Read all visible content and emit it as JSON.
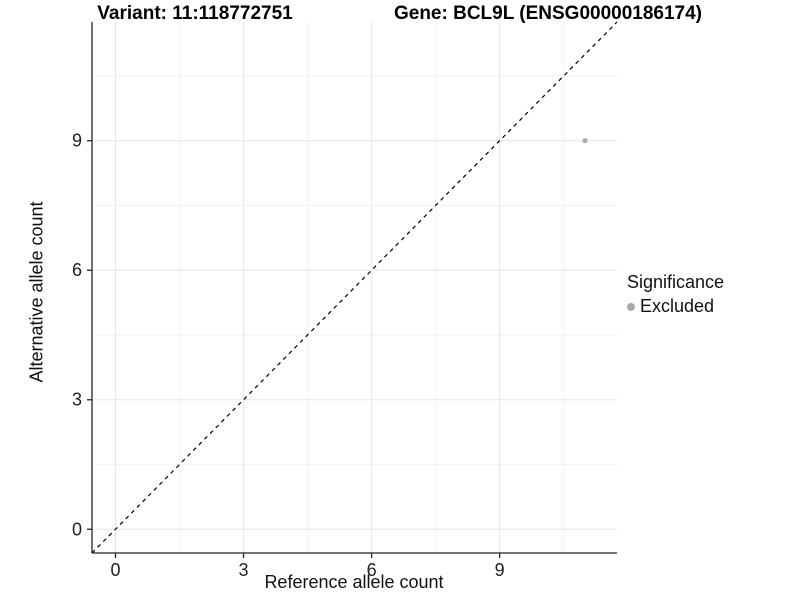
{
  "chart_data": {
    "type": "scatter",
    "title_left": "Variant: 11:118772751",
    "title_right": "Gene: BCL9L (ENSG00000186174)",
    "xlabel": "Reference allele count",
    "ylabel": "Alternative allele count",
    "xlim": [
      -0.55,
      11.75
    ],
    "ylim": [
      -0.55,
      11.75
    ],
    "x_ticks": [
      0,
      3,
      6,
      9
    ],
    "y_ticks": [
      0,
      3,
      6,
      9
    ],
    "x_minor_ticks": [
      1.5,
      4.5,
      7.5,
      10.5
    ],
    "y_minor_ticks": [
      1.5,
      4.5,
      7.5,
      10.5
    ],
    "grid": true,
    "points": [
      {
        "x": 11,
        "y": 9,
        "significance": "Excluded"
      }
    ],
    "identity_line": {
      "slope": 1,
      "intercept": 0,
      "style": "dashed"
    },
    "legend": {
      "title": "Significance",
      "position": "right",
      "items": [
        {
          "label": "Excluded",
          "color": "#aaaaaa"
        }
      ]
    },
    "colors": {
      "point": "#aaaaaa",
      "axis_line": "#222222",
      "tick_text": "#222222",
      "grid_major": "#e6e6e6",
      "grid_minor": "#f2f2f2",
      "identity_line": "#000000",
      "background": "#ffffff"
    }
  }
}
